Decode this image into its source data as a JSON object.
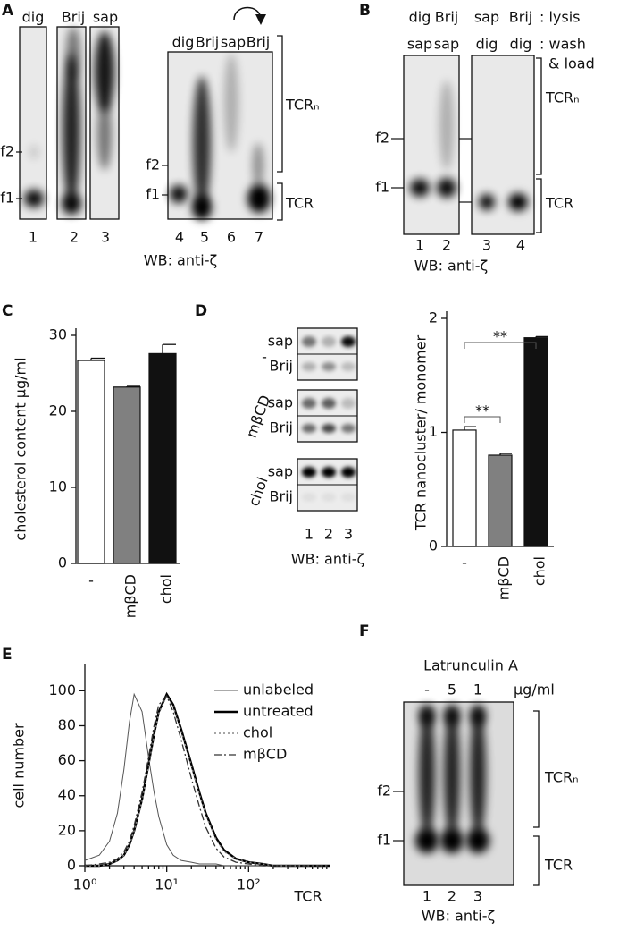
{
  "figure": {
    "panel_labels": [
      "A",
      "B",
      "C",
      "D",
      "E",
      "F"
    ],
    "a": {
      "left_lanes": [
        "dig",
        "Brij",
        "sap"
      ],
      "right_lanes": [
        "dig",
        "Brij",
        "sap",
        "Brij"
      ],
      "markers": [
        "f2",
        "f1",
        "f2",
        "f1"
      ],
      "lane_numbers": [
        1,
        2,
        3,
        4,
        5,
        6,
        7
      ],
      "brackets": [
        "TCRₙ",
        "TCR"
      ],
      "blot_label": "WB: anti-ζ"
    },
    "b": {
      "lysis": [
        "dig",
        "Brij",
        "sap",
        "Brij"
      ],
      "wash": [
        "sap",
        "sap",
        "dig",
        "dig"
      ],
      "legend": [
        ": lysis",
        ": wash",
        "& load"
      ],
      "markers": [
        "f2",
        "f1"
      ],
      "lane_numbers": [
        1,
        2,
        3,
        4
      ],
      "brackets": [
        "TCRₙ",
        "TCR"
      ],
      "blot_label": "WB: anti-ζ"
    },
    "d": {
      "rows": [
        "sap",
        "Brij",
        "sap",
        "Brij",
        "sap",
        "Brij"
      ],
      "groups": [
        "-",
        "mβCD",
        "chol"
      ],
      "lane_numbers": [
        1,
        2,
        3
      ],
      "blot_label": "WB: anti-ζ"
    },
    "f": {
      "title": "Latrunculin A",
      "doses": [
        "-",
        "5",
        "1"
      ],
      "unit": "μg/ml",
      "markers": [
        "f2",
        "f1"
      ],
      "lane_numbers": [
        1,
        2,
        3
      ],
      "brackets": [
        "TCRₙ",
        "TCR"
      ],
      "blot_label": "WB: anti-ζ"
    }
  },
  "chart_data": [
    {
      "type": "bar",
      "categories": [
        "-",
        "mβCD",
        "chol"
      ],
      "values": [
        26.7,
        23.2,
        27.6
      ],
      "errors": [
        0.3,
        0.1,
        1.2
      ],
      "colors": [
        "#ffffff",
        "#808080",
        "#111111"
      ],
      "y_label": "cholesterol content μg/ml",
      "ylim": [
        0,
        30
      ],
      "yticks": [
        0,
        10,
        20,
        30
      ]
    },
    {
      "type": "bar",
      "categories": [
        "-",
        "mβCD",
        "chol"
      ],
      "values": [
        1.02,
        0.8,
        1.83
      ],
      "errors": [
        0.03,
        0.015,
        0.01
      ],
      "colors": [
        "#ffffff",
        "#808080",
        "#111111"
      ],
      "y_label": "TCR nanocluster/ monomer",
      "ylim": [
        0,
        2
      ],
      "yticks": [
        0,
        1,
        2
      ],
      "annotations": [
        "**",
        "**"
      ]
    },
    {
      "type": "line",
      "x_label": "TCR",
      "y_label": "cell number",
      "xscale": "log",
      "xlim": [
        1,
        1000
      ],
      "xticks": [
        {
          "value": 1,
          "label": "10⁰"
        },
        {
          "value": 10,
          "label": "10¹"
        },
        {
          "value": 100,
          "label": "10²"
        }
      ],
      "ylim": [
        0,
        115
      ],
      "yticks": [
        0,
        20,
        40,
        60,
        80,
        100
      ],
      "x": [
        1,
        1.5,
        2,
        2.5,
        3,
        3.5,
        4,
        5,
        6,
        7,
        8,
        10,
        12,
        15,
        20,
        25,
        30,
        40,
        50,
        70,
        100,
        150,
        200,
        300,
        500,
        1000
      ],
      "series": [
        {
          "name": "unlabeled",
          "color": "#555555",
          "style": "thin",
          "values": [
            3,
            6,
            14,
            30,
            55,
            82,
            98,
            88,
            62,
            42,
            28,
            12,
            6,
            3,
            2,
            1,
            1,
            1,
            0,
            0,
            0,
            0,
            0,
            0,
            0,
            0
          ]
        },
        {
          "name": "untreated",
          "color": "#000000",
          "style": "bold",
          "values": [
            0,
            0,
            1,
            3,
            6,
            12,
            20,
            38,
            58,
            75,
            88,
            98,
            92,
            78,
            58,
            42,
            30,
            16,
            9,
            4,
            2,
            1,
            0,
            0,
            0,
            0
          ]
        },
        {
          "name": "chol",
          "color": "#888888",
          "style": "dotted",
          "values": [
            0,
            0,
            1,
            3,
            6,
            12,
            20,
            37,
            57,
            74,
            87,
            97,
            91,
            77,
            57,
            41,
            29,
            15,
            8,
            4,
            2,
            1,
            0,
            0,
            0,
            0
          ]
        },
        {
          "name": "mβCD",
          "color": "#333333",
          "style": "dash-dot",
          "values": [
            0,
            1,
            2,
            4,
            8,
            14,
            23,
            42,
            62,
            80,
            92,
            97,
            88,
            72,
            50,
            34,
            22,
            10,
            5,
            2,
            1,
            0,
            0,
            0,
            0,
            0
          ]
        }
      ]
    }
  ]
}
